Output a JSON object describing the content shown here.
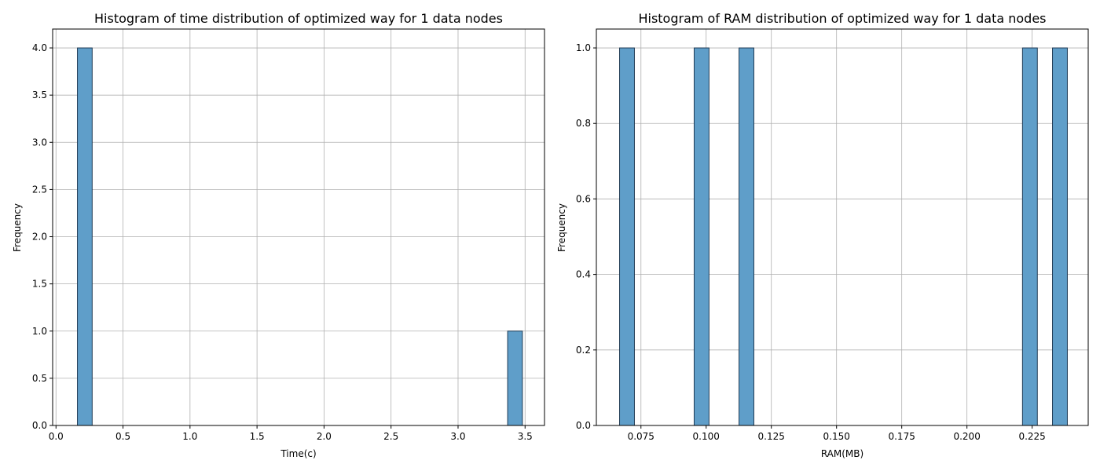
{
  "colors": {
    "bar_fill": "#5f9ec9",
    "bar_edge": "#1f3b55",
    "grid": "#b0b0b0",
    "axis": "#000000"
  },
  "chart_data": [
    {
      "type": "bar",
      "title": "Histogram of time distribution of optimized way for 1 data nodes",
      "xlabel": "Time(c)",
      "ylabel": "Frequency",
      "grid": true,
      "xlim": [
        -0.025,
        3.645
      ],
      "ylim": [
        0,
        4.2
      ],
      "xticks": [
        0.0,
        0.5,
        1.0,
        1.5,
        2.0,
        2.5,
        3.0,
        3.5
      ],
      "xtick_labels": [
        "0.0",
        "0.5",
        "1.0",
        "1.5",
        "2.0",
        "2.5",
        "3.0",
        "3.5"
      ],
      "yticks": [
        0.0,
        0.5,
        1.0,
        1.5,
        2.0,
        2.5,
        3.0,
        3.5,
        4.0
      ],
      "ytick_labels": [
        "0.0",
        "0.5",
        "1.0",
        "1.5",
        "2.0",
        "2.5",
        "3.0",
        "3.5",
        "4.0"
      ],
      "bars": [
        {
          "x0": 0.16,
          "x1": 0.27,
          "count": 4
        },
        {
          "x0": 3.37,
          "x1": 3.48,
          "count": 1
        }
      ]
    },
    {
      "type": "bar",
      "title": "Histogram of RAM distribution of optimized way for 1 data nodes",
      "xlabel": "RAM(MB)",
      "ylabel": "Frequency",
      "grid": true,
      "xlim": [
        0.0579,
        0.2465
      ],
      "ylim": [
        0,
        1.05
      ],
      "xticks": [
        0.075,
        0.1,
        0.125,
        0.15,
        0.175,
        0.2,
        0.225
      ],
      "xtick_labels": [
        "0.075",
        "0.100",
        "0.125",
        "0.150",
        "0.175",
        "0.200",
        "0.225"
      ],
      "yticks": [
        0.0,
        0.2,
        0.4,
        0.6,
        0.8,
        1.0
      ],
      "ytick_labels": [
        "0.0",
        "0.2",
        "0.4",
        "0.6",
        "0.8",
        "1.0"
      ],
      "bars": [
        {
          "x0": 0.0668,
          "x1": 0.0725,
          "count": 1
        },
        {
          "x0": 0.0954,
          "x1": 0.1011,
          "count": 1
        },
        {
          "x0": 0.1126,
          "x1": 0.1183,
          "count": 1
        },
        {
          "x0": 0.2213,
          "x1": 0.227,
          "count": 1
        },
        {
          "x0": 0.2328,
          "x1": 0.2385,
          "count": 1
        }
      ]
    }
  ]
}
